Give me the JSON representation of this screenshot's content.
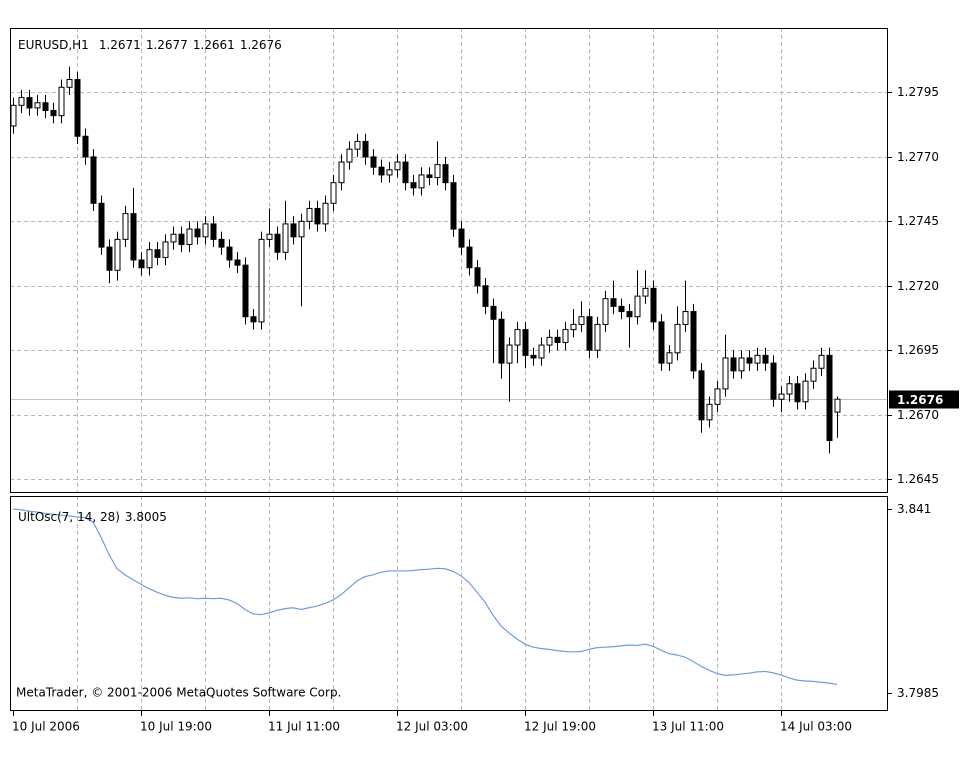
{
  "chart_data": [
    {
      "type": "candlestick",
      "title": "EURUSD,H1",
      "open": [
        1.2782,
        1.279,
        1.2793,
        1.2789,
        1.2791,
        1.2788,
        1.2786,
        1.2797,
        1.28,
        1.2778,
        1.277,
        1.2752,
        1.2735,
        1.2726,
        1.2738,
        1.2748,
        1.273,
        1.2727,
        1.2734,
        1.2731,
        1.2737,
        1.274,
        1.2736,
        1.2742,
        1.2739,
        1.2744,
        1.2738,
        1.2735,
        1.273,
        1.2728,
        1.2708,
        1.2706,
        1.2738,
        1.274,
        1.2733,
        1.2744,
        1.2739,
        1.2745,
        1.275,
        1.2744,
        1.2752,
        1.276,
        1.2768,
        1.2773,
        1.2776,
        1.277,
        1.2766,
        1.2763,
        1.2765,
        1.2768,
        1.276,
        1.2758,
        1.2763,
        1.2762,
        1.2767,
        1.276,
        1.2742,
        1.2735,
        1.2727,
        1.272,
        1.2712,
        1.2707,
        1.269,
        1.2697,
        1.2703,
        1.2693,
        1.2692,
        1.2697,
        1.27,
        1.2698,
        1.2703,
        1.2705,
        1.2708,
        1.2695,
        1.2705,
        1.2715,
        1.2712,
        1.271,
        1.2708,
        1.2716,
        1.2719,
        1.2706,
        1.269,
        1.2694,
        1.2705,
        1.271,
        1.2687,
        1.2668,
        1.2674,
        1.268,
        1.2692,
        1.2687,
        1.2692,
        1.269,
        1.2693,
        1.269,
        1.2676,
        1.2678,
        1.2682,
        1.2675,
        1.2683,
        1.2688,
        1.2693,
        1.2671
      ],
      "high": [
        1.2793,
        1.2796,
        1.2796,
        1.2794,
        1.2794,
        1.2791,
        1.28,
        1.2805,
        1.2803,
        1.2781,
        1.2773,
        1.2755,
        1.2738,
        1.2741,
        1.2751,
        1.2758,
        1.2733,
        1.2737,
        1.2737,
        1.274,
        1.2743,
        1.2743,
        1.2745,
        1.2745,
        1.2747,
        1.2747,
        1.2741,
        1.2738,
        1.2733,
        1.2731,
        1.2711,
        1.2741,
        1.275,
        1.2743,
        1.2753,
        1.2747,
        1.2748,
        1.2753,
        1.2753,
        1.2755,
        1.2763,
        1.2771,
        1.2776,
        1.2779,
        1.2779,
        1.2773,
        1.2769,
        1.2768,
        1.2771,
        1.2771,
        1.2763,
        1.2766,
        1.2766,
        1.2776,
        1.277,
        1.2763,
        1.2745,
        1.2738,
        1.273,
        1.2723,
        1.2715,
        1.271,
        1.27,
        1.2706,
        1.2706,
        1.2696,
        1.27,
        1.2703,
        1.2703,
        1.2706,
        1.2711,
        1.2714,
        1.2711,
        1.2708,
        1.2718,
        1.2722,
        1.2715,
        1.2713,
        1.2726,
        1.2726,
        1.2722,
        1.2709,
        1.2697,
        1.2712,
        1.2722,
        1.2713,
        1.269,
        1.2677,
        1.2683,
        1.2701,
        1.2695,
        1.2695,
        1.2695,
        1.2696,
        1.2696,
        1.2693,
        1.2681,
        1.2685,
        1.2685,
        1.2686,
        1.2691,
        1.2696,
        1.2696,
        1.2677
      ],
      "low": [
        1.2779,
        1.2787,
        1.2786,
        1.2786,
        1.2785,
        1.2783,
        1.2783,
        1.2794,
        1.2775,
        1.2767,
        1.2749,
        1.2732,
        1.2721,
        1.2722,
        1.2735,
        1.2727,
        1.2724,
        1.2724,
        1.2728,
        1.2728,
        1.2734,
        1.2733,
        1.2733,
        1.2736,
        1.2736,
        1.2735,
        1.2732,
        1.2727,
        1.2725,
        1.2705,
        1.2703,
        1.2703,
        1.2735,
        1.273,
        1.273,
        1.2736,
        1.2712,
        1.2742,
        1.2741,
        1.2741,
        1.2749,
        1.2757,
        1.2765,
        1.277,
        1.2767,
        1.2763,
        1.276,
        1.276,
        1.2762,
        1.2757,
        1.2755,
        1.2755,
        1.2759,
        1.2759,
        1.2757,
        1.2739,
        1.2732,
        1.2724,
        1.2717,
        1.2709,
        1.269,
        1.2684,
        1.2675,
        1.269,
        1.2688,
        1.2689,
        1.2689,
        1.2694,
        1.2695,
        1.2695,
        1.27,
        1.2702,
        1.2692,
        1.2692,
        1.2702,
        1.2709,
        1.2707,
        1.2696,
        1.2705,
        1.2713,
        1.2703,
        1.2687,
        1.2687,
        1.2691,
        1.2702,
        1.2684,
        1.2663,
        1.2665,
        1.2671,
        1.2677,
        1.2684,
        1.2684,
        1.2687,
        1.2687,
        1.2687,
        1.2673,
        1.2671,
        1.2675,
        1.2672,
        1.2672,
        1.268,
        1.2685,
        1.2655,
        1.2661
      ],
      "close": [
        1.279,
        1.2793,
        1.2789,
        1.2791,
        1.2788,
        1.2786,
        1.2797,
        1.28,
        1.2778,
        1.277,
        1.2752,
        1.2735,
        1.2726,
        1.2738,
        1.2748,
        1.273,
        1.2727,
        1.2734,
        1.2731,
        1.2737,
        1.274,
        1.2736,
        1.2742,
        1.2739,
        1.2744,
        1.2738,
        1.2735,
        1.273,
        1.2728,
        1.2708,
        1.2706,
        1.2738,
        1.274,
        1.2733,
        1.2744,
        1.2739,
        1.2745,
        1.275,
        1.2744,
        1.2752,
        1.276,
        1.2768,
        1.2773,
        1.2776,
        1.277,
        1.2766,
        1.2763,
        1.2765,
        1.2768,
        1.276,
        1.2758,
        1.2763,
        1.2762,
        1.2767,
        1.276,
        1.2742,
        1.2735,
        1.2727,
        1.272,
        1.2712,
        1.2707,
        1.269,
        1.2697,
        1.2703,
        1.2693,
        1.2692,
        1.2697,
        1.27,
        1.2698,
        1.2703,
        1.2705,
        1.2708,
        1.2695,
        1.2705,
        1.2715,
        1.2712,
        1.271,
        1.2708,
        1.2716,
        1.2719,
        1.2706,
        1.269,
        1.2694,
        1.2705,
        1.271,
        1.2687,
        1.2668,
        1.2674,
        1.268,
        1.2692,
        1.2687,
        1.2692,
        1.269,
        1.2693,
        1.269,
        1.2676,
        1.2678,
        1.2682,
        1.2675,
        1.2683,
        1.2688,
        1.2693,
        1.266,
        1.2676
      ],
      "color_up": "#ffffff",
      "color_down": "#000000",
      "ylim": [
        1.264,
        1.282
      ],
      "yticks": [
        1.2645,
        {
          "value": 1.267,
          "label": "1.2670"
        },
        1.2695,
        {
          "value": 1.272,
          "label": "1.2720"
        },
        1.2745,
        {
          "value": 1.277,
          "label": "1.2770"
        },
        1.2795
      ],
      "grid": true
    },
    {
      "type": "line",
      "title": "UltOsc(7, 14, 28)",
      "categories": [
        "10 Jul 2006",
        null,
        null,
        null,
        null,
        null,
        null,
        null,
        null,
        null,
        null,
        null,
        null,
        null,
        null,
        null,
        "10 Jul 19:00",
        null,
        null,
        null,
        null,
        null,
        null,
        null,
        null,
        null,
        null,
        null,
        null,
        null,
        null,
        null,
        "11 Jul 11:00",
        null,
        null,
        null,
        null,
        null,
        null,
        null,
        null,
        null,
        null,
        null,
        null,
        null,
        null,
        null,
        "12 Jul 03:00",
        null,
        null,
        null,
        null,
        null,
        null,
        null,
        null,
        null,
        null,
        null,
        null,
        null,
        null,
        null,
        "12 Jul 19:00",
        null,
        null,
        null,
        null,
        null,
        null,
        null,
        null,
        null,
        null,
        null,
        null,
        null,
        null,
        null,
        "13 Jul 11:00",
        null,
        null,
        null,
        null,
        null,
        null,
        null,
        null,
        null,
        null,
        null,
        null,
        null,
        null,
        null,
        "14 Jul 03:00",
        null,
        null,
        null,
        null,
        null,
        null,
        null
      ],
      "values": [
        3.841,
        3.8408,
        3.8405,
        3.8403,
        3.84,
        3.8398,
        3.8396,
        3.8394,
        3.8392,
        3.839,
        3.838,
        3.8345,
        3.8305,
        3.8272,
        3.8258,
        3.8247,
        3.8236,
        3.8226,
        3.8218,
        3.8211,
        3.8206,
        3.8204,
        3.8205,
        3.8203,
        3.8204,
        3.8203,
        3.8204,
        3.82,
        3.8192,
        3.8178,
        3.8168,
        3.8166,
        3.817,
        3.8176,
        3.818,
        3.8182,
        3.8178,
        3.8182,
        3.8186,
        3.8192,
        3.82,
        3.8212,
        3.8228,
        3.8244,
        3.8254,
        3.8258,
        3.8264,
        3.8267,
        3.8267,
        3.8267,
        3.8268,
        3.827,
        3.8271,
        3.8273,
        3.8272,
        3.8266,
        3.8256,
        3.824,
        3.8218,
        3.8195,
        3.8165,
        3.814,
        3.8124,
        3.811,
        3.8098,
        3.8091,
        3.8088,
        3.8086,
        3.8083,
        3.8081,
        3.808,
        3.8081,
        3.8086,
        3.809,
        3.8091,
        3.8092,
        3.8094,
        3.8096,
        3.8095,
        3.8098,
        3.8093,
        3.8084,
        3.8076,
        3.8073,
        3.8068,
        3.8058,
        3.8047,
        3.8038,
        3.803,
        3.8026,
        3.8027,
        3.8029,
        3.8031,
        3.8034,
        3.8035,
        3.8032,
        3.8027,
        3.802,
        3.8015,
        3.8013,
        3.8012,
        3.801,
        3.8008,
        3.8005
      ],
      "color": "#6f9be8",
      "ylim": [
        3.7946,
        3.844
      ],
      "yticks": [
        3.841,
        3.7985
      ],
      "grid": true,
      "annotations": [
        "MetaTrader, © 2001-2006 MetaQuotes Software Corp."
      ]
    }
  ]
}
